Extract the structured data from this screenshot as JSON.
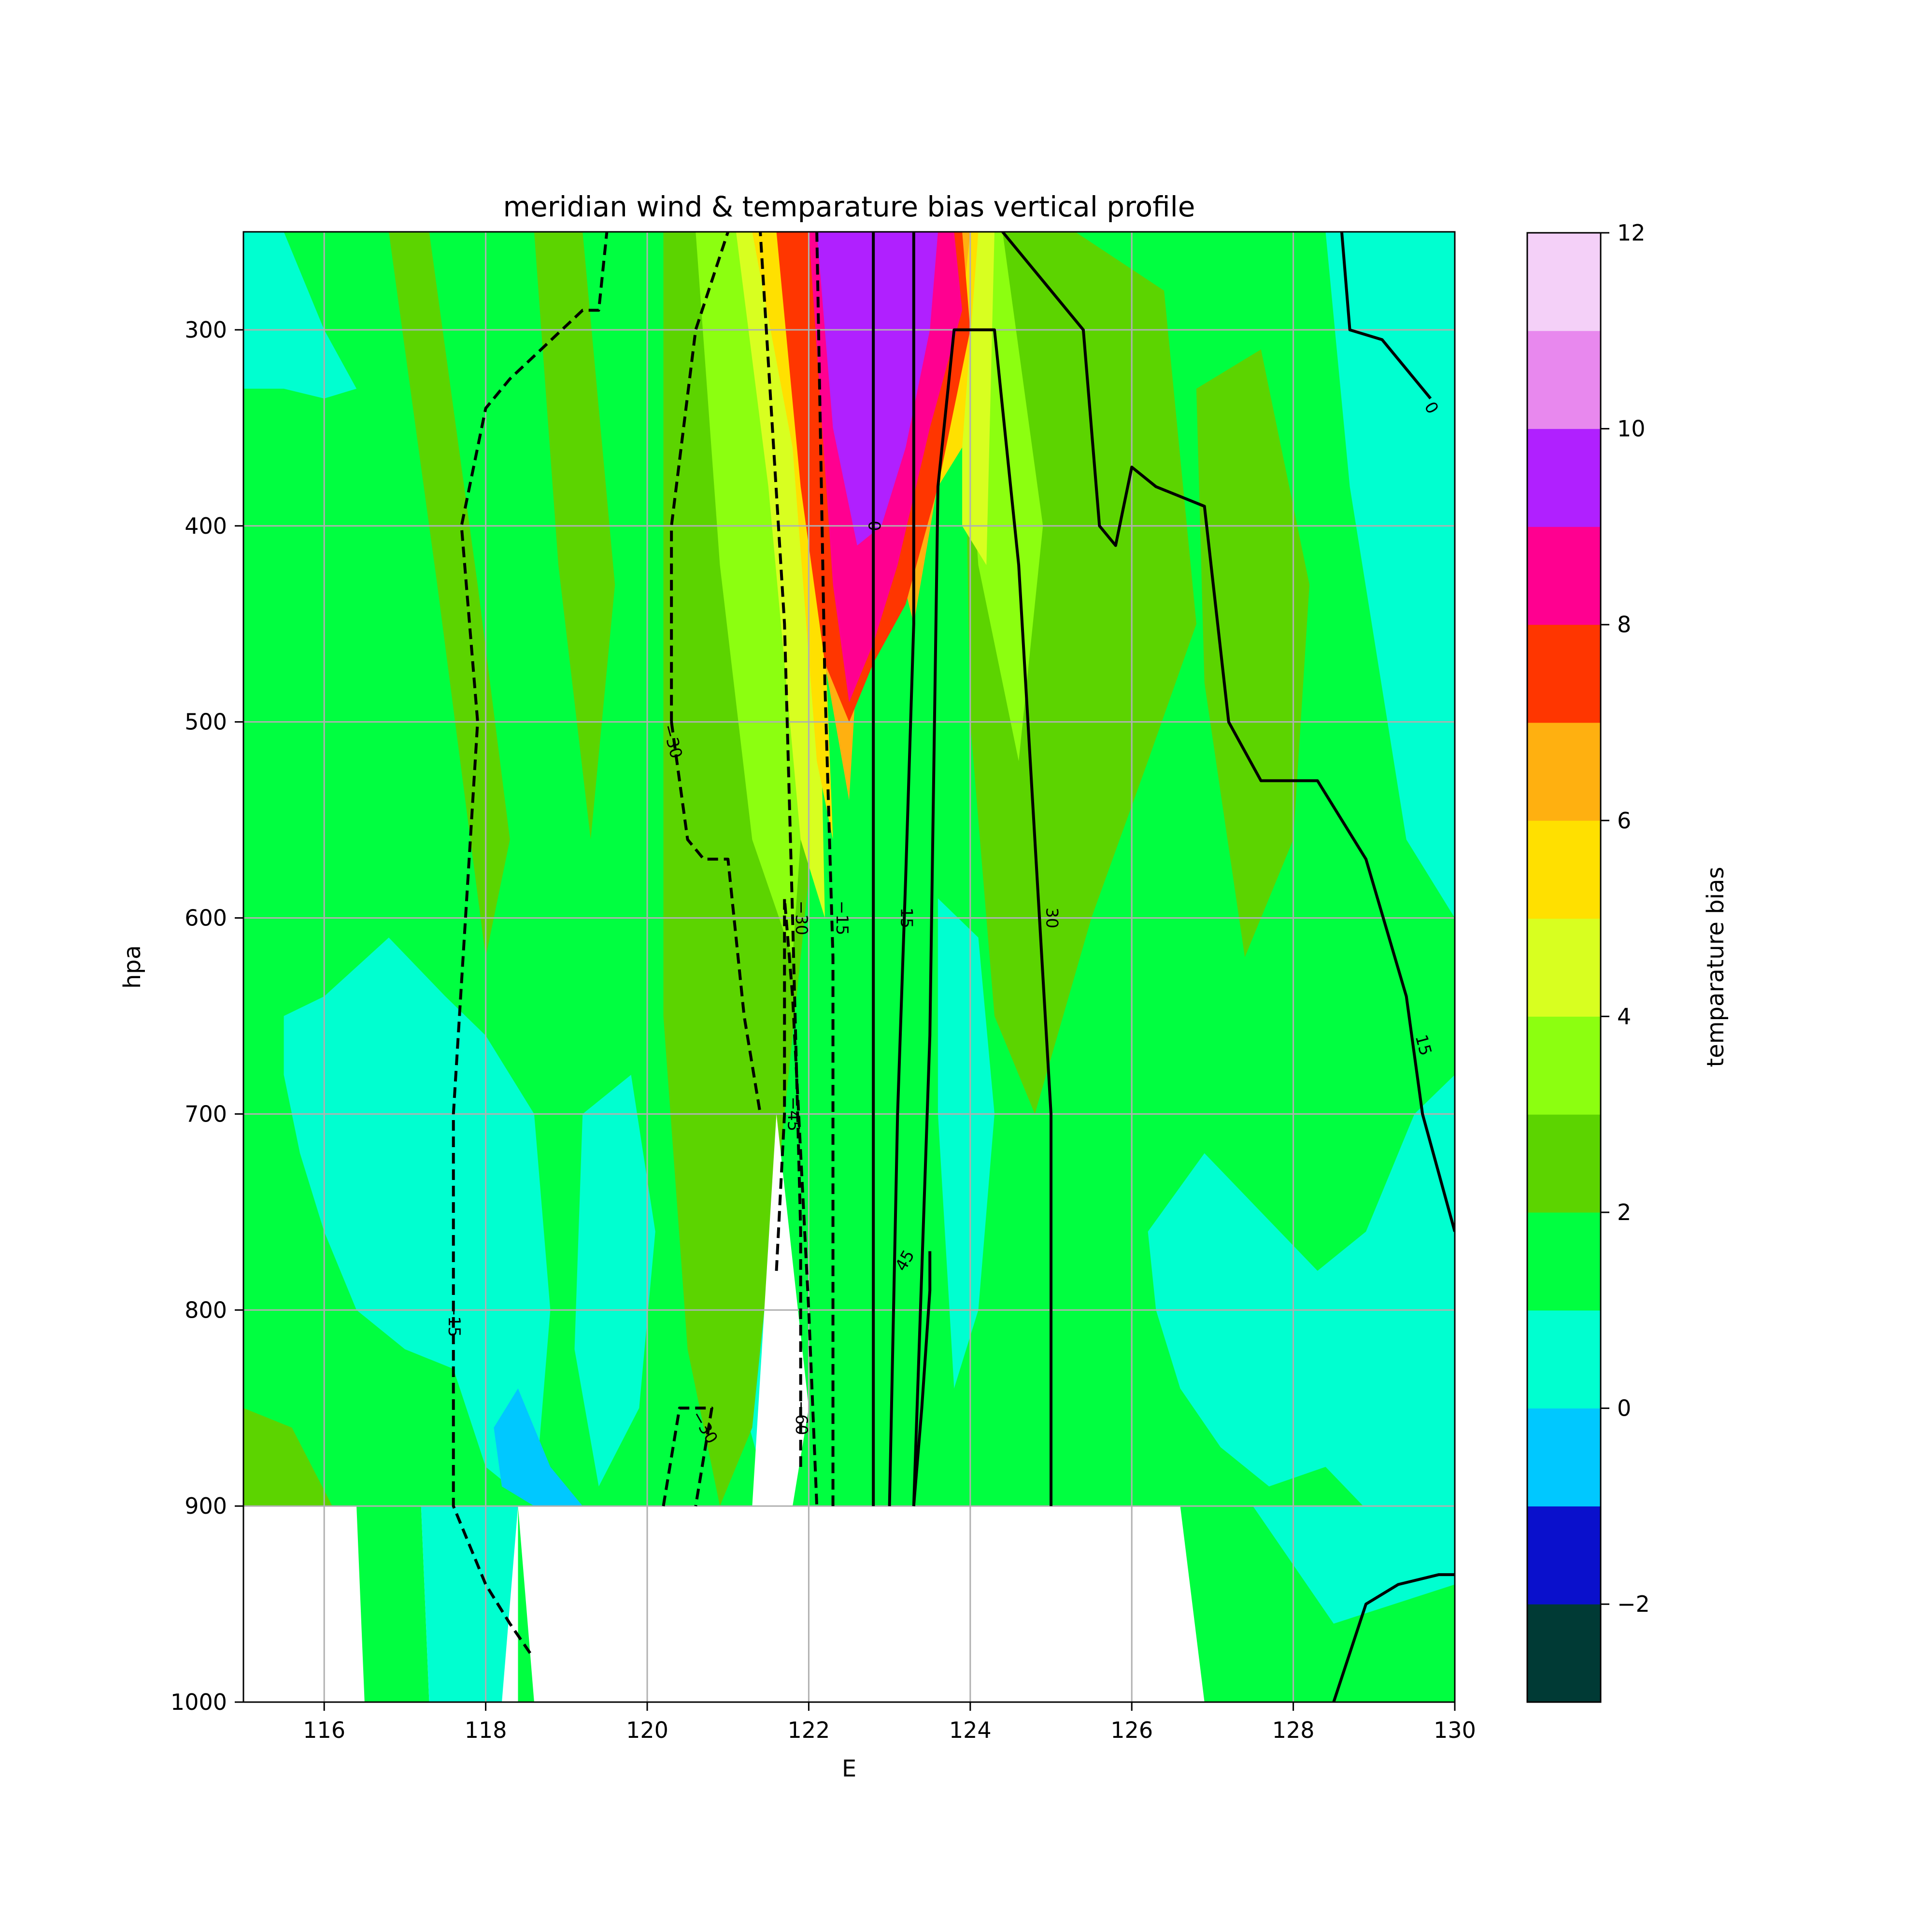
{
  "chart_data": {
    "type": "heatmap",
    "title": "meridian wind & temparature bias vertical profile",
    "xlabel": "E",
    "ylabel": "hpa",
    "xlim": [
      115,
      130
    ],
    "ylim": [
      1000,
      250
    ],
    "y_inverted": true,
    "grid": true,
    "x_ticks": [
      "116",
      "118",
      "120",
      "122",
      "124",
      "126",
      "128",
      "130"
    ],
    "x_tick_values": [
      116,
      118,
      120,
      122,
      124,
      126,
      128,
      130
    ],
    "y_ticks": [
      "300",
      "400",
      "500",
      "600",
      "700",
      "800",
      "900",
      "1000"
    ],
    "y_tick_values": [
      300,
      400,
      500,
      600,
      700,
      800,
      900,
      1000
    ],
    "colorbar": {
      "label": "temparature bias",
      "levels": [
        -3,
        -2,
        -1,
        0,
        1,
        2,
        3,
        4,
        5,
        6,
        7,
        8,
        9,
        10,
        11,
        12
      ],
      "colors": [
        "#003a35",
        "#0a10cc",
        "#00c8ff",
        "#00ffd0",
        "#00ff40",
        "#5cd400",
        "#8cff10",
        "#d8ff20",
        "#ffe000",
        "#ffb010",
        "#ff3600",
        "#ff0090",
        "#b020ff",
        "#e888ee",
        "#f4d0f8"
      ],
      "tick_labels": [
        "−2",
        "0",
        "2",
        "4",
        "6",
        "8",
        "10",
        "12"
      ],
      "tick_values": [
        -2,
        0,
        2,
        4,
        6,
        8,
        10,
        12
      ]
    },
    "background_level": 1,
    "bias_field": [
      {
        "x": [
          115,
          115.5,
          116,
          116.4,
          116,
          115.5,
          115
        ],
        "y": [
          250,
          250,
          300,
          330,
          335,
          330,
          330
        ],
        "level": 0
      },
      {
        "x": [
          116,
          116.8,
          117.5,
          118,
          118.6,
          118.8,
          118.6,
          118,
          117.6,
          117,
          116.4,
          116,
          115.7,
          115.5,
          115.5
        ],
        "y": [
          640,
          610,
          640,
          660,
          700,
          800,
          900,
          880,
          830,
          820,
          800,
          760,
          720,
          680,
          650
        ],
        "level": 0
      },
      {
        "x": [
          119.2,
          119.8,
          120.1,
          119.9,
          119.4,
          119.1
        ],
        "y": [
          700,
          680,
          760,
          850,
          890,
          820
        ],
        "level": 0
      },
      {
        "x": [
          120.6,
          121.1,
          121.5,
          121.6,
          121.4,
          121.0,
          120.7
        ],
        "y": [
          560,
          580,
          700,
          820,
          880,
          820,
          640
        ],
        "level": 0
      },
      {
        "x": [
          123.6,
          124.1,
          124.3,
          124.1,
          123.8,
          123.6
        ],
        "y": [
          590,
          610,
          700,
          800,
          840,
          700
        ],
        "level": 0
      },
      {
        "x": [
          126.2,
          126.9,
          127.6,
          128.3,
          128.9,
          129.5,
          130,
          130,
          129.6,
          129.1,
          128.4,
          127.7,
          127.1,
          126.6,
          126.3
        ],
        "y": [
          760,
          720,
          750,
          780,
          760,
          700,
          680,
          930,
          930,
          910,
          880,
          890,
          870,
          840,
          800
        ],
        "level": 0
      },
      {
        "x": [
          128.4,
          129.2,
          130,
          130,
          129.4,
          128.7
        ],
        "y": [
          250,
          250,
          250,
          600,
          560,
          380
        ],
        "level": 0
      },
      {
        "x": [
          129.8,
          130,
          130,
          129.8
        ],
        "y": [
          420,
          420,
          600,
          560
        ],
        "level": 0
      },
      {
        "x": [
          118.1,
          118.4,
          118.8,
          119.2,
          118.6,
          118.2
        ],
        "y": [
          860,
          840,
          880,
          900,
          900,
          890
        ],
        "level": -0.5
      },
      {
        "x": [
          116.8,
          117.3,
          117.9,
          118.3,
          118.0,
          117.4
        ],
        "y": [
          250,
          250,
          430,
          560,
          620,
          430
        ],
        "level": 2
      },
      {
        "x": [
          118.6,
          119.2,
          119.6,
          119.3,
          118.9
        ],
        "y": [
          250,
          250,
          430,
          560,
          420
        ],
        "level": 2
      },
      {
        "x": [
          120.2,
          121.6,
          122.0,
          121.7,
          121.3,
          120.9,
          120.5,
          120.2
        ],
        "y": [
          250,
          250,
          580,
          700,
          860,
          900,
          820,
          650
        ],
        "level": 2
      },
      {
        "x": [
          123.9,
          125.3,
          126.4,
          126.8,
          126.2,
          125.5,
          124.8,
          124.3,
          124.0
        ],
        "y": [
          250,
          250,
          280,
          450,
          520,
          600,
          700,
          650,
          500
        ],
        "level": 2
      },
      {
        "x": [
          126.8,
          127.6,
          128.2,
          128.0,
          127.4,
          126.9
        ],
        "y": [
          330,
          310,
          430,
          560,
          620,
          480
        ],
        "level": 2
      },
      {
        "x": [
          115.0,
          115.6,
          116.1,
          115.6,
          115.0
        ],
        "y": [
          850,
          860,
          900,
          930,
          930
        ],
        "level": 2
      },
      {
        "x": [
          120.6,
          121.3,
          122.0,
          121.8,
          121.3,
          120.9
        ],
        "y": [
          250,
          250,
          500,
          620,
          560,
          420
        ],
        "level": 3
      },
      {
        "x": [
          123.8,
          124.4,
          124.9,
          124.6,
          124.1
        ],
        "y": [
          250,
          250,
          400,
          520,
          420
        ],
        "level": 3
      },
      {
        "x": [
          121.1,
          121.7,
          122.1,
          122.2,
          121.9,
          121.5
        ],
        "y": [
          250,
          250,
          400,
          600,
          560,
          380
        ],
        "level": 4
      },
      {
        "x": [
          123.9,
          124.3,
          124.2,
          123.9
        ],
        "y": [
          250,
          250,
          420,
          400
        ],
        "level": 4
      },
      {
        "x": [
          121.3,
          121.8,
          122.1,
          122.3,
          122.1,
          121.8
        ],
        "y": [
          250,
          250,
          350,
          560,
          520,
          360
        ],
        "level": 5
      },
      {
        "x": [
          123.8,
          124.1,
          123.9,
          123.6
        ],
        "y": [
          250,
          250,
          360,
          380
        ],
        "level": 5
      },
      {
        "x": [
          121.9,
          122.4,
          122.7,
          122.5,
          122.2
        ],
        "y": [
          250,
          250,
          400,
          540,
          470
        ],
        "level": 6
      },
      {
        "x": [
          123.0,
          124.0,
          123.8,
          123.3,
          123.0
        ],
        "y": [
          250,
          250,
          330,
          450,
          400
        ],
        "level": 6
      },
      {
        "x": [
          121.6,
          122.1,
          123.2,
          123.9,
          124.0,
          123.6,
          123.2,
          122.8,
          122.5,
          122.2,
          121.9
        ],
        "y": [
          250,
          250,
          250,
          250,
          300,
          380,
          440,
          470,
          500,
          470,
          380
        ],
        "level": 7
      },
      {
        "x": [
          122.0,
          122.5,
          123.0,
          123.8,
          123.9,
          123.5,
          123.1,
          122.8,
          122.5,
          122.3
        ],
        "y": [
          250,
          250,
          250,
          250,
          290,
          350,
          420,
          460,
          490,
          430
        ],
        "level": 8
      },
      {
        "x": [
          122.1,
          122.6,
          123.0,
          123.6,
          123.5,
          123.2,
          122.9,
          122.6,
          122.3
        ],
        "y": [
          250,
          250,
          250,
          250,
          300,
          360,
          400,
          410,
          350
        ],
        "level": 9
      }
    ],
    "masked_regions": [
      {
        "x": [
          115,
          127,
          127,
          115
        ],
        "y": [
          900,
          900,
          1000,
          1000
        ]
      },
      {
        "x": [
          121.3,
          121.6,
          122,
          121.8,
          121.3
        ],
        "y": [
          900,
          700,
          850,
          900,
          900
        ]
      }
    ],
    "masked_keep": [
      {
        "x": [
          116.4,
          117.2,
          117.3,
          116.5
        ],
        "y": [
          900,
          900,
          1000,
          1000
        ],
        "level": 1
      },
      {
        "x": [
          117.2,
          118.4,
          118.2,
          117.3
        ],
        "y": [
          900,
          900,
          1000,
          1000
        ],
        "level": 0
      },
      {
        "x": [
          118.4,
          118.6,
          118.4
        ],
        "y": [
          900,
          1000,
          1000
        ],
        "level": 1
      },
      {
        "x": [
          126.6,
          127.5,
          130,
          130,
          127.5,
          126.9
        ],
        "y": [
          900,
          900,
          900,
          1000,
          1000,
          1000
        ],
        "level": 1
      },
      {
        "x": [
          127.5,
          129.6,
          130,
          130,
          128.5
        ],
        "y": [
          900,
          900,
          900,
          940,
          960
        ],
        "level": 0
      }
    ],
    "wind_contours": [
      {
        "level": -15,
        "style": "dashed",
        "x": [
          117.7,
          118.2,
          118.8,
          119.3,
          119.5,
          119.6
        ],
        "y": [
          975,
          940,
          900,
          870,
          820,
          250
        ],
        "path": [
          [
            118.55,
            975
          ],
          [
            118.3,
            960
          ],
          [
            118.0,
            940
          ],
          [
            117.6,
            900
          ],
          [
            117.6,
            700
          ],
          [
            117.9,
            500
          ],
          [
            117.7,
            400
          ],
          [
            118.0,
            340
          ],
          [
            118.3,
            325
          ],
          [
            119.2,
            290
          ],
          [
            119.4,
            290
          ],
          [
            119.5,
            250
          ]
        ]
      },
      {
        "level": -30,
        "style": "dashed",
        "path": [
          [
            120.2,
            900
          ],
          [
            120.4,
            850
          ],
          [
            120.8,
            850
          ],
          [
            120.6,
            900
          ]
        ]
      },
      {
        "level": -30,
        "style": "dashed",
        "path": [
          [
            120.3,
            500
          ],
          [
            120.5,
            560
          ],
          [
            120.7,
            570
          ],
          [
            121.0,
            570
          ],
          [
            121.2,
            650
          ],
          [
            121.4,
            700
          ]
        ]
      },
      {
        "level": -30,
        "style": "dashed",
        "path": [
          [
            120.3,
            500
          ],
          [
            120.3,
            400
          ],
          [
            120.6,
            300
          ],
          [
            121.0,
            250
          ]
        ]
      },
      {
        "level": -45,
        "style": "dashed",
        "path": [
          [
            121.6,
            780
          ],
          [
            121.7,
            700
          ],
          [
            121.7,
            590
          ],
          [
            121.8,
            640
          ],
          [
            122.0,
            800
          ],
          [
            122.1,
            900
          ]
        ]
      },
      {
        "level": -60,
        "style": "dashed",
        "path": [
          [
            121.9,
            880
          ],
          [
            121.9,
            760
          ],
          [
            121.8,
            600
          ],
          [
            121.7,
            450
          ],
          [
            121.4,
            250
          ]
        ]
      },
      {
        "level": -15,
        "style": "dashed",
        "path": [
          [
            122.3,
            900
          ],
          [
            122.3,
            620
          ],
          [
            122.2,
            480
          ],
          [
            122.1,
            250
          ]
        ]
      },
      {
        "level": 0,
        "style": "solid",
        "path": [
          [
            122.8,
            900
          ],
          [
            122.8,
            600
          ],
          [
            122.8,
            390
          ],
          [
            122.8,
            250
          ]
        ]
      },
      {
        "level": 15,
        "style": "solid",
        "path": [
          [
            123.0,
            900
          ],
          [
            123.1,
            700
          ],
          [
            123.2,
            580
          ],
          [
            123.3,
            450
          ],
          [
            123.3,
            250
          ]
        ]
      },
      {
        "level": 30,
        "style": "solid",
        "path": [
          [
            123.3,
            900
          ],
          [
            123.5,
            660
          ],
          [
            123.6,
            380
          ],
          [
            123.8,
            300
          ],
          [
            124.3,
            300
          ],
          [
            124.6,
            420
          ],
          [
            125.0,
            700
          ],
          [
            125.0,
            900
          ]
        ]
      },
      {
        "level": 45,
        "style": "solid",
        "path": [
          [
            123.3,
            900
          ],
          [
            123.4,
            850
          ],
          [
            123.5,
            790
          ],
          [
            123.5,
            770
          ]
        ]
      },
      {
        "level": 15,
        "style": "solid",
        "path": [
          [
            124.4,
            250
          ],
          [
            125.4,
            300
          ],
          [
            125.6,
            400
          ],
          [
            125.8,
            410
          ],
          [
            126.0,
            370
          ],
          [
            126.3,
            380
          ],
          [
            126.9,
            390
          ],
          [
            127.2,
            500
          ],
          [
            127.6,
            530
          ],
          [
            128.3,
            530
          ],
          [
            128.9,
            570
          ],
          [
            129.4,
            640
          ],
          [
            129.6,
            700
          ],
          [
            130,
            760
          ]
        ]
      },
      {
        "level": 0,
        "style": "solid",
        "path": [
          [
            128.6,
            250
          ],
          [
            128.7,
            300
          ],
          [
            129.1,
            305
          ],
          [
            129.7,
            335
          ]
        ]
      },
      {
        "level": 0,
        "style": "solid",
        "path": [
          [
            128.5,
            1000
          ],
          [
            128.9,
            950
          ],
          [
            129.3,
            940
          ],
          [
            129.8,
            935
          ],
          [
            130,
            935
          ]
        ]
      }
    ],
    "contour_labels": [
      {
        "text": "0",
        "x": 122.8,
        "y": 400,
        "rotation": 90
      },
      {
        "text": "0",
        "x": 129.7,
        "y": 340,
        "rotation": 60
      },
      {
        "text": "−30",
        "x": 120.3,
        "y": 510,
        "rotation": 75
      },
      {
        "text": "−30",
        "x": 121.9,
        "y": 600,
        "rotation": 90
      },
      {
        "text": "−15",
        "x": 122.4,
        "y": 600,
        "rotation": 90
      },
      {
        "text": "15",
        "x": 123.2,
        "y": 600,
        "rotation": 90
      },
      {
        "text": "30",
        "x": 125.0,
        "y": 600,
        "rotation": 90
      },
      {
        "text": "15",
        "x": 129.6,
        "y": 665,
        "rotation": 75
      },
      {
        "text": "−45",
        "x": 121.8,
        "y": 700,
        "rotation": 90
      },
      {
        "text": "45",
        "x": 123.2,
        "y": 775,
        "rotation": -60
      },
      {
        "text": "−15",
        "x": 117.6,
        "y": 805,
        "rotation": 90
      },
      {
        "text": "−30",
        "x": 120.7,
        "y": 860,
        "rotation": 60
      },
      {
        "text": "−60",
        "x": 121.9,
        "y": 855,
        "rotation": 90
      }
    ]
  }
}
